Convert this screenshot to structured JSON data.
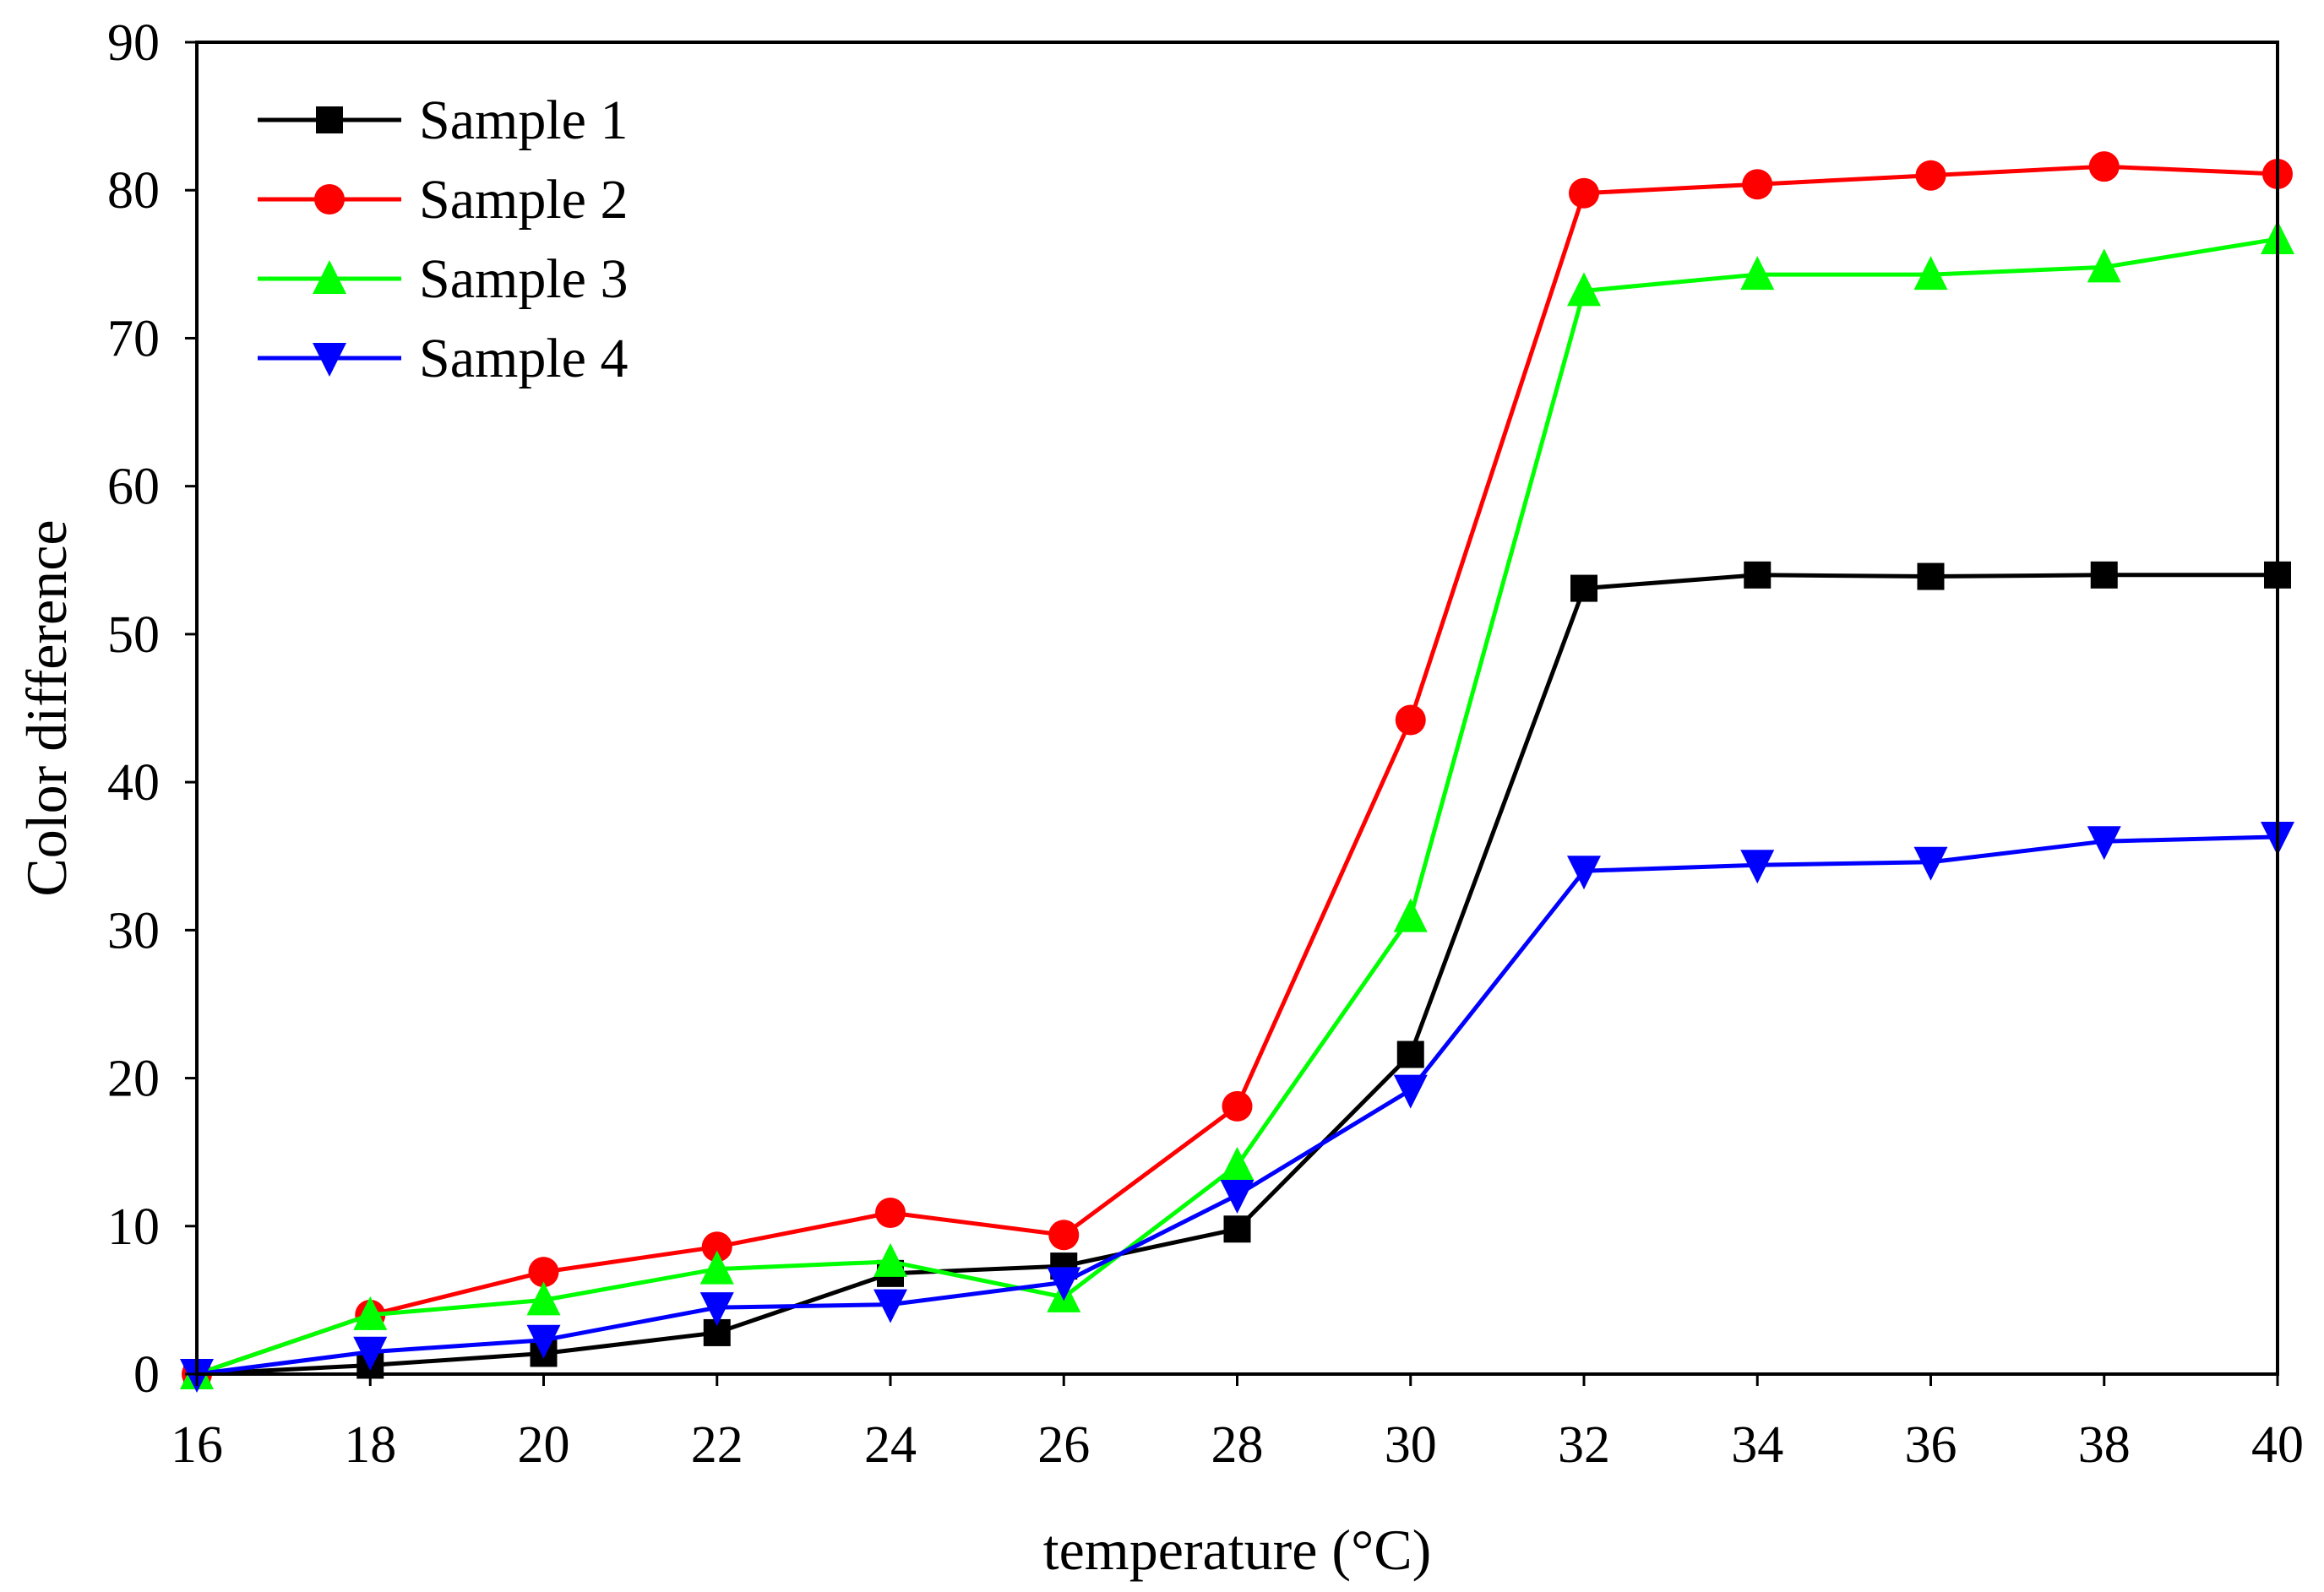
{
  "chart_data": {
    "type": "line",
    "title": "",
    "xlabel": "temperature (°C)",
    "ylabel": "Color difference",
    "xlim": [
      16,
      40
    ],
    "ylim": [
      0,
      90
    ],
    "x_ticks": [
      16,
      18,
      20,
      22,
      24,
      26,
      28,
      30,
      32,
      34,
      36,
      38,
      40
    ],
    "y_ticks": [
      0,
      10,
      20,
      30,
      40,
      50,
      60,
      70,
      80,
      90
    ],
    "grid": false,
    "legend_position": "top-left",
    "x": [
      16,
      18,
      20,
      22,
      24,
      26,
      28,
      30,
      32,
      34,
      36,
      38,
      40
    ],
    "series": [
      {
        "name": "Sample 1",
        "color": "#000000",
        "marker": "square",
        "values": [
          0.0,
          0.6,
          1.4,
          2.8,
          6.8,
          7.3,
          9.8,
          21.6,
          53.1,
          54.0,
          53.9,
          54.0,
          54.0
        ]
      },
      {
        "name": "Sample 2",
        "color": "#ff0000",
        "marker": "circle",
        "values": [
          0.0,
          4.0,
          6.9,
          8.6,
          10.9,
          9.4,
          18.1,
          44.2,
          79.8,
          80.4,
          81.0,
          81.6,
          81.1
        ]
      },
      {
        "name": "Sample 3",
        "color": "#00ff00",
        "marker": "triangle-up",
        "values": [
          0.0,
          4.0,
          5.0,
          7.1,
          7.6,
          5.2,
          14.1,
          30.9,
          73.2,
          74.3,
          74.3,
          74.8,
          76.7
        ]
      },
      {
        "name": "Sample 4",
        "color": "#0000ff",
        "marker": "triangle-down",
        "values": [
          0.0,
          1.5,
          2.3,
          4.5,
          4.7,
          6.2,
          12.1,
          19.2,
          34.0,
          34.4,
          34.6,
          36.0,
          36.3
        ]
      }
    ]
  }
}
